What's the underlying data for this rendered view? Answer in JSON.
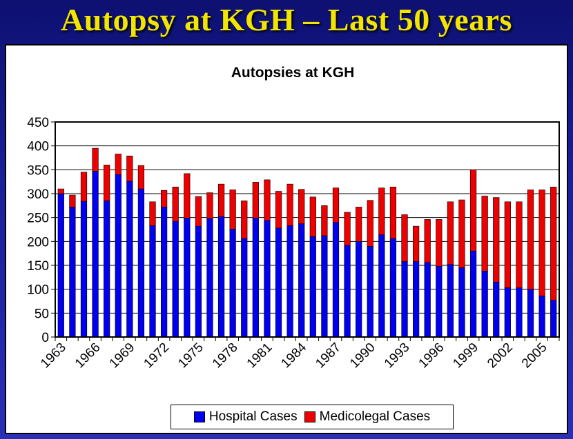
{
  "slide": {
    "title": "Autopsy at KGH – Last 50 years"
  },
  "colors": {
    "title": "#f2e600",
    "hospital": "#0000ee",
    "medicolegal": "#ee0000"
  },
  "chart_data": {
    "type": "bar",
    "stacked": true,
    "title": "Autopsies at KGH",
    "xlabel": "",
    "ylabel": "",
    "ylim": [
      0,
      450
    ],
    "yticks": [
      0,
      50,
      100,
      150,
      200,
      250,
      300,
      350,
      400,
      450
    ],
    "grid": true,
    "legend_position": "bottom",
    "categories": [
      "1963",
      "1964",
      "1965",
      "1966",
      "1967",
      "1968",
      "1969",
      "1970",
      "1971",
      "1972",
      "1973",
      "1974",
      "1975",
      "1976",
      "1977",
      "1978",
      "1979",
      "1980",
      "1981",
      "1982",
      "1983",
      "1984",
      "1985",
      "1986",
      "1987",
      "1988",
      "1989",
      "1990",
      "1991",
      "1992",
      "1993",
      "1994",
      "1995",
      "1996",
      "1997",
      "1998",
      "1999",
      "2000",
      "2001",
      "2002",
      "2003",
      "2004",
      "2005",
      "2006"
    ],
    "tick_labels": [
      "1963",
      "1966",
      "1969",
      "1972",
      "1975",
      "1978",
      "1981",
      "1984",
      "1987",
      "1990",
      "1993",
      "1996",
      "1999",
      "2002",
      "2005"
    ],
    "tick_every": 3,
    "series": [
      {
        "name": "Hospital Cases",
        "color": "#0000ee",
        "values": [
          300,
          272,
          284,
          347,
          285,
          340,
          326,
          310,
          233,
          272,
          242,
          249,
          232,
          248,
          252,
          226,
          206,
          249,
          244,
          228,
          233,
          237,
          210,
          212,
          240,
          192,
          200,
          190,
          214,
          206,
          158,
          158,
          156,
          148,
          152,
          145,
          180,
          138,
          115,
          103,
          103,
          100,
          86,
          77
        ]
      },
      {
        "name": "Medicolegal Cases",
        "color": "#ee0000",
        "values": [
          10,
          25,
          61,
          48,
          75,
          43,
          53,
          49,
          50,
          35,
          72,
          93,
          62,
          54,
          68,
          82,
          79,
          75,
          85,
          77,
          87,
          72,
          83,
          63,
          72,
          69,
          72,
          96,
          98,
          108,
          98,
          74,
          90,
          98,
          131,
          142,
          170,
          157,
          177,
          180,
          180,
          208,
          222,
          237
        ]
      }
    ]
  }
}
